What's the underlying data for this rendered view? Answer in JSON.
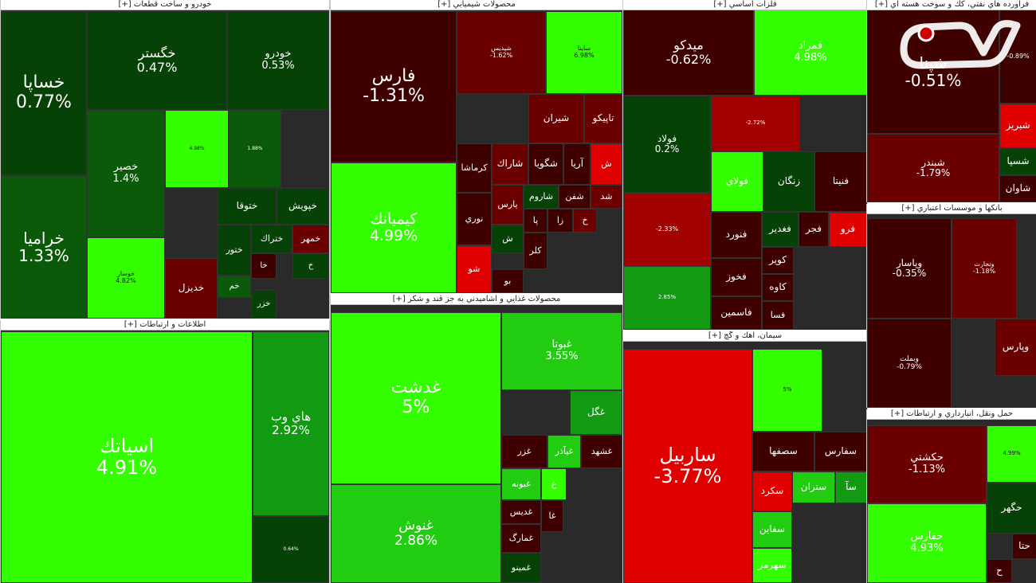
{
  "chart_data": {
    "type": "treemap",
    "sectors": [
      {
        "title": "خودرو و ساخت قطعات [+]",
        "stocks": [
          {
            "name": "خساپا",
            "change": "0.77%"
          },
          {
            "name": "خگستر",
            "change": "0.47%"
          },
          {
            "name": "خودرو",
            "change": "0.53%"
          },
          {
            "name": "خراميا",
            "change": "1.33%"
          },
          {
            "name": "خصير",
            "change": "1.4%"
          },
          {
            "name": "",
            "change": "4.98%"
          },
          {
            "name": "",
            "change": "1.88%"
          },
          {
            "name": "خوساز",
            "change": "4.82%"
          },
          {
            "name": "ختوقا",
            "change": ""
          },
          {
            "name": "خپويش",
            "change": ""
          },
          {
            "name": "ختراك",
            "change": ""
          },
          {
            "name": "خمهر",
            "change": ""
          },
          {
            "name": "ختور",
            "change": ""
          },
          {
            "name": "خا",
            "change": ""
          },
          {
            "name": "خ",
            "change": ""
          },
          {
            "name": "خديزل",
            "change": ""
          },
          {
            "name": "خم",
            "change": ""
          },
          {
            "name": "خزر",
            "change": ""
          }
        ]
      },
      {
        "title": "اطلاعات و ارتباطات [+]",
        "stocks": [
          {
            "name": "اسياتك",
            "change": "4.91%"
          },
          {
            "name": "هاي وب",
            "change": "2.92%"
          },
          {
            "name": "",
            "change": "0.64%"
          }
        ]
      },
      {
        "title": "محصولات شيميايي [+]",
        "stocks": [
          {
            "name": "فارس",
            "change": "-1.31%"
          },
          {
            "name": "شپديس",
            "change": "-1.62%"
          },
          {
            "name": "ساينا",
            "change": "6.98%"
          },
          {
            "name": "کيميانك",
            "change": "4.99%"
          },
          {
            "name": "شيران",
            "change": ""
          },
          {
            "name": "تاپيكو",
            "change": ""
          },
          {
            "name": "كرماشا",
            "change": ""
          },
          {
            "name": "شاراك",
            "change": ""
          },
          {
            "name": "شگويا",
            "change": ""
          },
          {
            "name": "آريا",
            "change": ""
          },
          {
            "name": "ش",
            "change": ""
          },
          {
            "name": "يارس",
            "change": ""
          },
          {
            "name": "شاروم",
            "change": ""
          },
          {
            "name": "شفن",
            "change": ""
          },
          {
            "name": "شد",
            "change": ""
          },
          {
            "name": "نوري",
            "change": ""
          },
          {
            "name": "پا",
            "change": ""
          },
          {
            "name": "زا",
            "change": ""
          },
          {
            "name": "خ",
            "change": ""
          },
          {
            "name": "ش",
            "change": ""
          },
          {
            "name": "كلر",
            "change": ""
          },
          {
            "name": "شو",
            "change": ""
          },
          {
            "name": "بو",
            "change": ""
          }
        ]
      },
      {
        "title": "محصولات غذايي و آشاميدني به جز قند و شكر [+]",
        "stocks": [
          {
            "name": "غدشت",
            "change": "5%"
          },
          {
            "name": "غبوتا",
            "change": "3.55%"
          },
          {
            "name": "غگل",
            "change": ""
          },
          {
            "name": "غزر",
            "change": ""
          },
          {
            "name": "غيآذر",
            "change": ""
          },
          {
            "name": "غشهد",
            "change": ""
          },
          {
            "name": "غنوش",
            "change": "2.86%"
          },
          {
            "name": "غبونه",
            "change": ""
          },
          {
            "name": "غ",
            "change": ""
          },
          {
            "name": "غديس",
            "change": ""
          },
          {
            "name": "غا",
            "change": ""
          },
          {
            "name": "غمارگ",
            "change": ""
          },
          {
            "name": "غمينو",
            "change": ""
          }
        ]
      },
      {
        "title": "فلزات اساسي [+]",
        "stocks": [
          {
            "name": "ميدكو",
            "change": "-0.62%"
          },
          {
            "name": "فمراد",
            "change": "4.98%"
          },
          {
            "name": "فولاد",
            "change": "0.2%"
          },
          {
            "name": "",
            "change": "-2.72%"
          },
          {
            "name": "فولاي",
            "change": ""
          },
          {
            "name": "زنگان",
            "change": ""
          },
          {
            "name": "فنيتا",
            "change": ""
          },
          {
            "name": "",
            "change": "-2.33%"
          },
          {
            "name": "فنورد",
            "change": ""
          },
          {
            "name": "فغدير",
            "change": ""
          },
          {
            "name": "فجر",
            "change": ""
          },
          {
            "name": "فرو",
            "change": ""
          },
          {
            "name": "كوير",
            "change": ""
          },
          {
            "name": "فخوز",
            "change": ""
          },
          {
            "name": "كاوه",
            "change": ""
          },
          {
            "name": "",
            "change": "2.85%"
          },
          {
            "name": "فاسمين",
            "change": ""
          },
          {
            "name": "فسا",
            "change": ""
          }
        ]
      },
      {
        "title": "سيمان، آهك و گچ [+]",
        "stocks": [
          {
            "name": "ساربيل",
            "change": "-3.77%"
          },
          {
            "name": "",
            "change": "5%"
          },
          {
            "name": "سصفها",
            "change": ""
          },
          {
            "name": "سفارس",
            "change": ""
          },
          {
            "name": "سكرد",
            "change": ""
          },
          {
            "name": "ستران",
            "change": ""
          },
          {
            "name": "سآ",
            "change": ""
          },
          {
            "name": "سفاين",
            "change": ""
          },
          {
            "name": "سهرمز",
            "change": ""
          }
        ]
      },
      {
        "title": "فرآورده هاي نفتي، كك و سوخت هسته اي [+]",
        "stocks": [
          {
            "name": "شپنا",
            "change": "-0.51%"
          },
          {
            "name": "",
            "change": "-0.89%"
          },
          {
            "name": "شبريز",
            "change": ""
          },
          {
            "name": "شبندر",
            "change": "-1.79%"
          },
          {
            "name": "شسپا",
            "change": ""
          },
          {
            "name": "شاوان",
            "change": ""
          }
        ]
      },
      {
        "title": "بانكها و موسسات اعتباري [+]",
        "stocks": [
          {
            "name": "وپاسار",
            "change": "-0.35%"
          },
          {
            "name": "وتجارت",
            "change": "-1.18%"
          },
          {
            "name": "وپارس",
            "change": ""
          },
          {
            "name": "وبملت",
            "change": "-0.79%"
          }
        ]
      },
      {
        "title": "حمل ونقل، انبارداري و ارتباطات [+]",
        "stocks": [
          {
            "name": "حكشتي",
            "change": "-1.13%"
          },
          {
            "name": "",
            "change": "4.99%"
          },
          {
            "name": "حگهر",
            "change": ""
          },
          {
            "name": "حفارس",
            "change": "4.93%"
          },
          {
            "name": "حتا",
            "change": ""
          },
          {
            "name": "ح",
            "change": ""
          }
        ]
      }
    ],
    "colors": {
      "bright_green": "#33ff00",
      "light_green": "#22cc11",
      "medium_green": "#129a12",
      "dark_green": "#0a5a0a",
      "darkest_green": "#064206",
      "dark_red": "#6b0000",
      "darkest_red": "#3f0000",
      "red": "#a30000",
      "bright_red": "#e00000"
    }
  }
}
